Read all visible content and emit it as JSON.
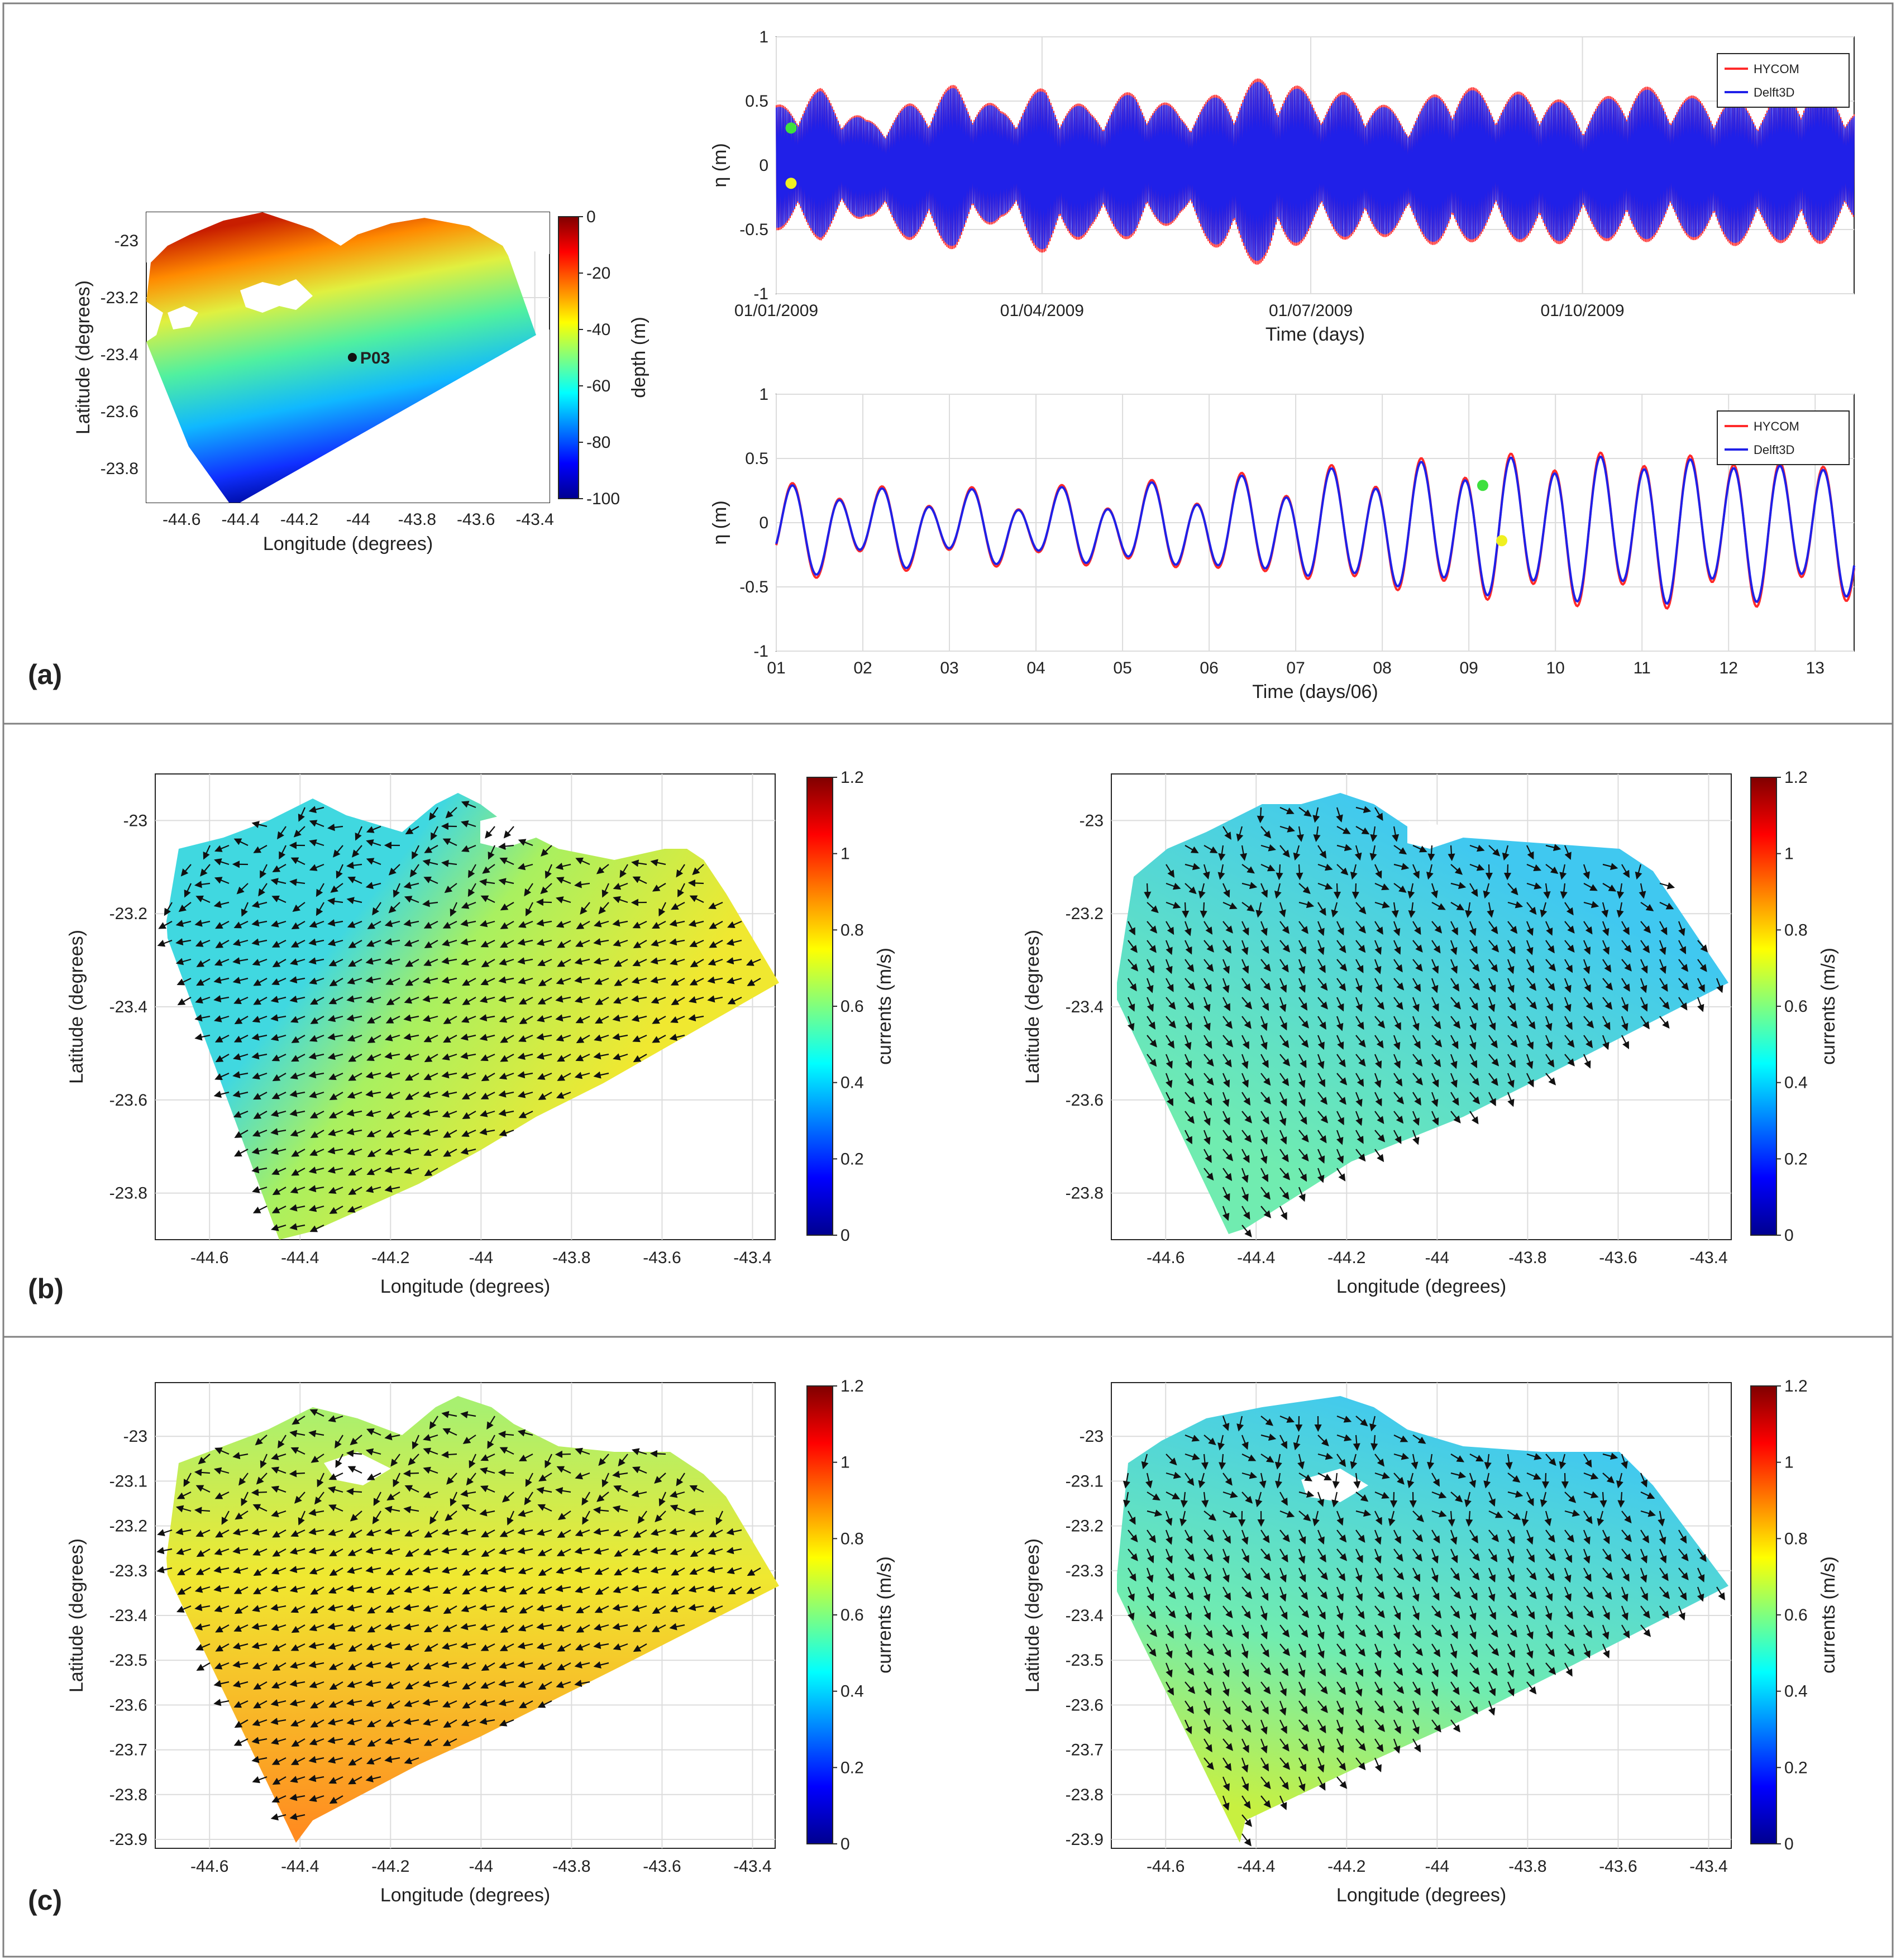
{
  "figure": {
    "panel_labels": [
      "(a)",
      "(b)",
      "(c)"
    ],
    "colors": {
      "hycom": "#ff2a2a",
      "delft3d": "#2020e8",
      "marker_green": "#3ee03e",
      "marker_yellow": "#f0f020",
      "frame": "#262626",
      "grid": "#dcdcdc"
    }
  },
  "chart_data": [
    {
      "id": "bathymetry",
      "type": "heatmap",
      "title": "",
      "xlabel": "Longitude (degrees)",
      "ylabel": "Latitude (degrees)",
      "xlim": [
        -44.72,
        -43.35
      ],
      "ylim": [
        -23.92,
        -22.9
      ],
      "xticks": [
        "-44.6",
        "-44.4",
        "-44.2",
        "-44",
        "-43.8",
        "-43.6",
        "-43.4"
      ],
      "yticks": [
        "-23",
        "-23.2",
        "-23.4",
        "-23.6",
        "-23.8"
      ],
      "colorbar": {
        "label": "depth (m)",
        "range": [
          -100,
          0
        ],
        "ticks": [
          "0",
          "-20",
          "-40",
          "-60",
          "-80",
          "-100"
        ]
      },
      "station": {
        "name": "P03",
        "lon": -44.02,
        "lat": -23.41
      }
    },
    {
      "id": "sea-level-year",
      "type": "line",
      "xlabel": "Time (days)",
      "ylabel": "η (m)",
      "ylim": [
        -1,
        1
      ],
      "yticks": [
        "1",
        "0.5",
        "0",
        "-0.5",
        "-1"
      ],
      "xticks": [
        "01/01/2009",
        "01/04/2009",
        "01/07/2009",
        "01/10/2009"
      ],
      "xlim_days": [
        0,
        365
      ],
      "xtick_days": [
        0,
        90,
        181,
        273
      ],
      "series": [
        {
          "name": "HYCOM"
        },
        {
          "name": "Delft3D"
        }
      ],
      "envelope_peaks": [
        0.45,
        0.55,
        0.35,
        0.5,
        0.6,
        0.4,
        0.62,
        0.45,
        0.55,
        0.4,
        0.6,
        0.7,
        0.5,
        0.55,
        0.42,
        0.62,
        0.5,
        0.58,
        0.45,
        0.6,
        0.5,
        0.55,
        0.5,
        0.62,
        0.45
      ],
      "markers": [
        {
          "color": "green",
          "day": 5,
          "eta": 0.29
        },
        {
          "color": "yellow",
          "day": 5,
          "eta": -0.14
        }
      ]
    },
    {
      "id": "sea-level-june",
      "type": "line",
      "xlabel": "Time (days/06)",
      "ylabel": "η (m)",
      "ylim": [
        -1,
        1
      ],
      "yticks": [
        "1",
        "0.5",
        "0",
        "-0.5",
        "-1"
      ],
      "xticks": [
        "01",
        "02",
        "03",
        "04",
        "05",
        "06",
        "07",
        "08",
        "09",
        "10",
        "11",
        "12",
        "13"
      ],
      "xlim": [
        1,
        13.45
      ],
      "series": [
        {
          "name": "HYCOM"
        },
        {
          "name": "Delft3D"
        }
      ],
      "markers": [
        {
          "color": "green",
          "day": 9.16,
          "eta": 0.29
        },
        {
          "color": "yellow",
          "day": 9.38,
          "eta": -0.14
        }
      ]
    },
    {
      "id": "currents-b-left",
      "type": "heatmap",
      "variant": "vector",
      "xlabel": "Longitude (degrees)",
      "ylabel": "Latitude (degrees)",
      "xlim": [
        -44.72,
        -43.35
      ],
      "ylim": [
        -23.9,
        -22.9
      ],
      "xticks": [
        "-44.6",
        "-44.4",
        "-44.2",
        "-44",
        "-43.8",
        "-43.6",
        "-43.4"
      ],
      "yticks": [
        "-23",
        "-23.2",
        "-23.4",
        "-23.6",
        "-23.8"
      ],
      "colorbar": {
        "label": "currents (m/s)",
        "range": [
          0,
          1.2
        ],
        "ticks": [
          "1.2",
          "1",
          "0.8",
          "0.6",
          "0.4",
          "0.2",
          "0"
        ]
      },
      "mean_speed": 0.68,
      "flow_direction_deg": 200
    },
    {
      "id": "currents-b-right",
      "type": "heatmap",
      "variant": "vector",
      "xlabel": "Longitude (degrees)",
      "ylabel": "Latitude (degrees)",
      "xlim": [
        -44.72,
        -43.35
      ],
      "ylim": [
        -23.9,
        -22.9
      ],
      "xticks": [
        "-44.6",
        "-44.4",
        "-44.2",
        "-44",
        "-43.8",
        "-43.6",
        "-43.4"
      ],
      "yticks": [
        "-23",
        "-23.2",
        "-23.4",
        "-23.6",
        "-23.8"
      ],
      "colorbar": {
        "label": "currents (m/s)",
        "range": [
          0,
          1.2
        ],
        "ticks": [
          "1.2",
          "1",
          "0.8",
          "0.6",
          "0.4",
          "0.2",
          "0"
        ]
      },
      "mean_speed": 0.52,
      "flow_direction_deg": 300
    },
    {
      "id": "currents-c-left",
      "type": "heatmap",
      "variant": "vector",
      "xlabel": "Longitude (degrees)",
      "ylabel": "Latitude (degrees)",
      "xlim": [
        -44.72,
        -43.35
      ],
      "ylim": [
        -23.92,
        -22.88
      ],
      "xticks": [
        "-44.6",
        "-44.4",
        "-44.2",
        "-44",
        "-43.8",
        "-43.6",
        "-43.4"
      ],
      "yticks": [
        "-23",
        "-23.1",
        "-23.2",
        "-23.3",
        "-23.4",
        "-23.5",
        "-23.6",
        "-23.7",
        "-23.8",
        "-23.9"
      ],
      "colorbar": {
        "label": "currents (m/s)",
        "range": [
          0,
          1.2
        ],
        "ticks": [
          "1.2",
          "1",
          "0.8",
          "0.6",
          "0.4",
          "0.2",
          "0"
        ]
      },
      "mean_speed": 0.78,
      "flow_direction_deg": 200
    },
    {
      "id": "currents-c-right",
      "type": "heatmap",
      "variant": "vector",
      "xlabel": "Longitude (degrees)",
      "ylabel": "Latitude (degrees)",
      "xlim": [
        -44.72,
        -43.35
      ],
      "ylim": [
        -23.92,
        -22.88
      ],
      "xticks": [
        "-44.6",
        "-44.4",
        "-44.2",
        "-44",
        "-43.8",
        "-43.6",
        "-43.4"
      ],
      "yticks": [
        "-23",
        "-23.1",
        "-23.2",
        "-23.3",
        "-23.4",
        "-23.5",
        "-23.6",
        "-23.7",
        "-23.8",
        "-23.9"
      ],
      "colorbar": {
        "label": "currents (m/s)",
        "range": [
          0,
          1.2
        ],
        "ticks": [
          "1.2",
          "1",
          "0.8",
          "0.6",
          "0.4",
          "0.2",
          "0"
        ]
      },
      "mean_speed": 0.55,
      "flow_direction_deg": 300
    }
  ]
}
